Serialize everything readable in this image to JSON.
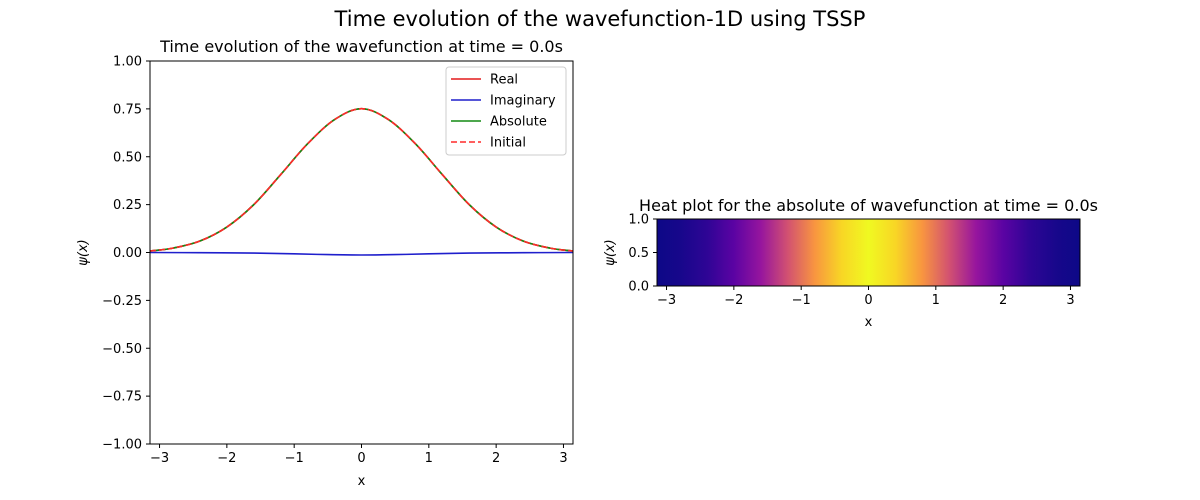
{
  "figure": {
    "suptitle": "Time evolution of the wavefunction-1D using TSSP"
  },
  "chart_data": [
    {
      "type": "line",
      "title": "Time evolution of the wavefunction at time = 0.0s",
      "xlabel": "x",
      "ylabel": "ψ(x)",
      "xlim": [
        -3.14159,
        3.14159
      ],
      "ylim": [
        -1.0,
        1.0
      ],
      "xticks": [
        -3,
        -2,
        -1,
        0,
        1,
        2,
        3
      ],
      "xtick_labels": [
        "−3",
        "−2",
        "−1",
        "0",
        "1",
        "2",
        "3"
      ],
      "yticks": [
        -1.0,
        -0.75,
        -0.5,
        -0.25,
        0.0,
        0.25,
        0.5,
        0.75,
        1.0
      ],
      "ytick_labels": [
        "−1.00",
        "−0.75",
        "−0.50",
        "−0.25",
        "0.00",
        "0.25",
        "0.50",
        "0.75",
        "1.00"
      ],
      "legend_position": "top-right",
      "series": [
        {
          "name": "Real",
          "color": "#e41a1c",
          "style": "solid",
          "x": [
            -3.14,
            -2.8,
            -2.4,
            -2.0,
            -1.6,
            -1.2,
            -0.8,
            -0.4,
            0.0,
            0.4,
            0.8,
            1.2,
            1.6,
            2.0,
            2.4,
            2.8,
            3.14
          ],
          "y": [
            0.008,
            0.023,
            0.06,
            0.133,
            0.25,
            0.407,
            0.568,
            0.694,
            0.751,
            0.694,
            0.568,
            0.407,
            0.25,
            0.133,
            0.06,
            0.023,
            0.008
          ]
        },
        {
          "name": "Imaginary",
          "color": "#1f1fcc",
          "style": "solid",
          "x": [
            -3.14,
            -2.4,
            -1.6,
            -1.0,
            -0.5,
            0.0,
            0.5,
            1.0,
            1.6,
            2.4,
            3.14
          ],
          "y": [
            0.0,
            -0.001,
            -0.003,
            -0.007,
            -0.011,
            -0.013,
            -0.011,
            -0.007,
            -0.003,
            -0.001,
            0.0
          ]
        },
        {
          "name": "Absolute",
          "color": "#128a12",
          "style": "solid",
          "x": [
            -3.14,
            -2.8,
            -2.4,
            -2.0,
            -1.6,
            -1.2,
            -0.8,
            -0.4,
            0.0,
            0.4,
            0.8,
            1.2,
            1.6,
            2.0,
            2.4,
            2.8,
            3.14
          ],
          "y": [
            0.008,
            0.023,
            0.06,
            0.133,
            0.25,
            0.407,
            0.568,
            0.694,
            0.751,
            0.694,
            0.568,
            0.407,
            0.25,
            0.133,
            0.06,
            0.023,
            0.008
          ]
        },
        {
          "name": "Initial",
          "color": "#ff2a2a",
          "style": "dashed",
          "x": [
            -3.14,
            -2.8,
            -2.4,
            -2.0,
            -1.6,
            -1.2,
            -0.8,
            -0.4,
            0.0,
            0.4,
            0.8,
            1.2,
            1.6,
            2.0,
            2.4,
            2.8,
            3.14
          ],
          "y": [
            0.008,
            0.023,
            0.06,
            0.133,
            0.25,
            0.407,
            0.568,
            0.694,
            0.751,
            0.694,
            0.568,
            0.407,
            0.25,
            0.133,
            0.06,
            0.023,
            0.008
          ]
        }
      ]
    },
    {
      "type": "heatmap",
      "title": "Heat plot for the absolute of wavefunction at time = 0.0s",
      "xlabel": "x",
      "ylabel": "ψ(x)",
      "colormap": "plasma",
      "xlim": [
        -3.14159,
        3.14159
      ],
      "ylim": [
        0.0,
        1.0
      ],
      "xticks": [
        -3,
        -2,
        -1,
        0,
        1,
        2,
        3
      ],
      "xtick_labels": [
        "−3",
        "−2",
        "−1",
        "0",
        "1",
        "2",
        "3"
      ],
      "yticks": [
        0.0,
        0.5,
        1.0
      ],
      "ytick_labels": [
        "0.0",
        "0.5",
        "1.0"
      ],
      "x": [
        -3.14,
        -2.8,
        -2.4,
        -2.0,
        -1.6,
        -1.2,
        -0.8,
        -0.4,
        0.0,
        0.4,
        0.8,
        1.2,
        1.6,
        2.0,
        2.4,
        2.8,
        3.14
      ],
      "values": [
        0.008,
        0.023,
        0.06,
        0.133,
        0.25,
        0.407,
        0.568,
        0.694,
        0.751,
        0.694,
        0.568,
        0.407,
        0.25,
        0.133,
        0.06,
        0.023,
        0.008
      ]
    }
  ]
}
